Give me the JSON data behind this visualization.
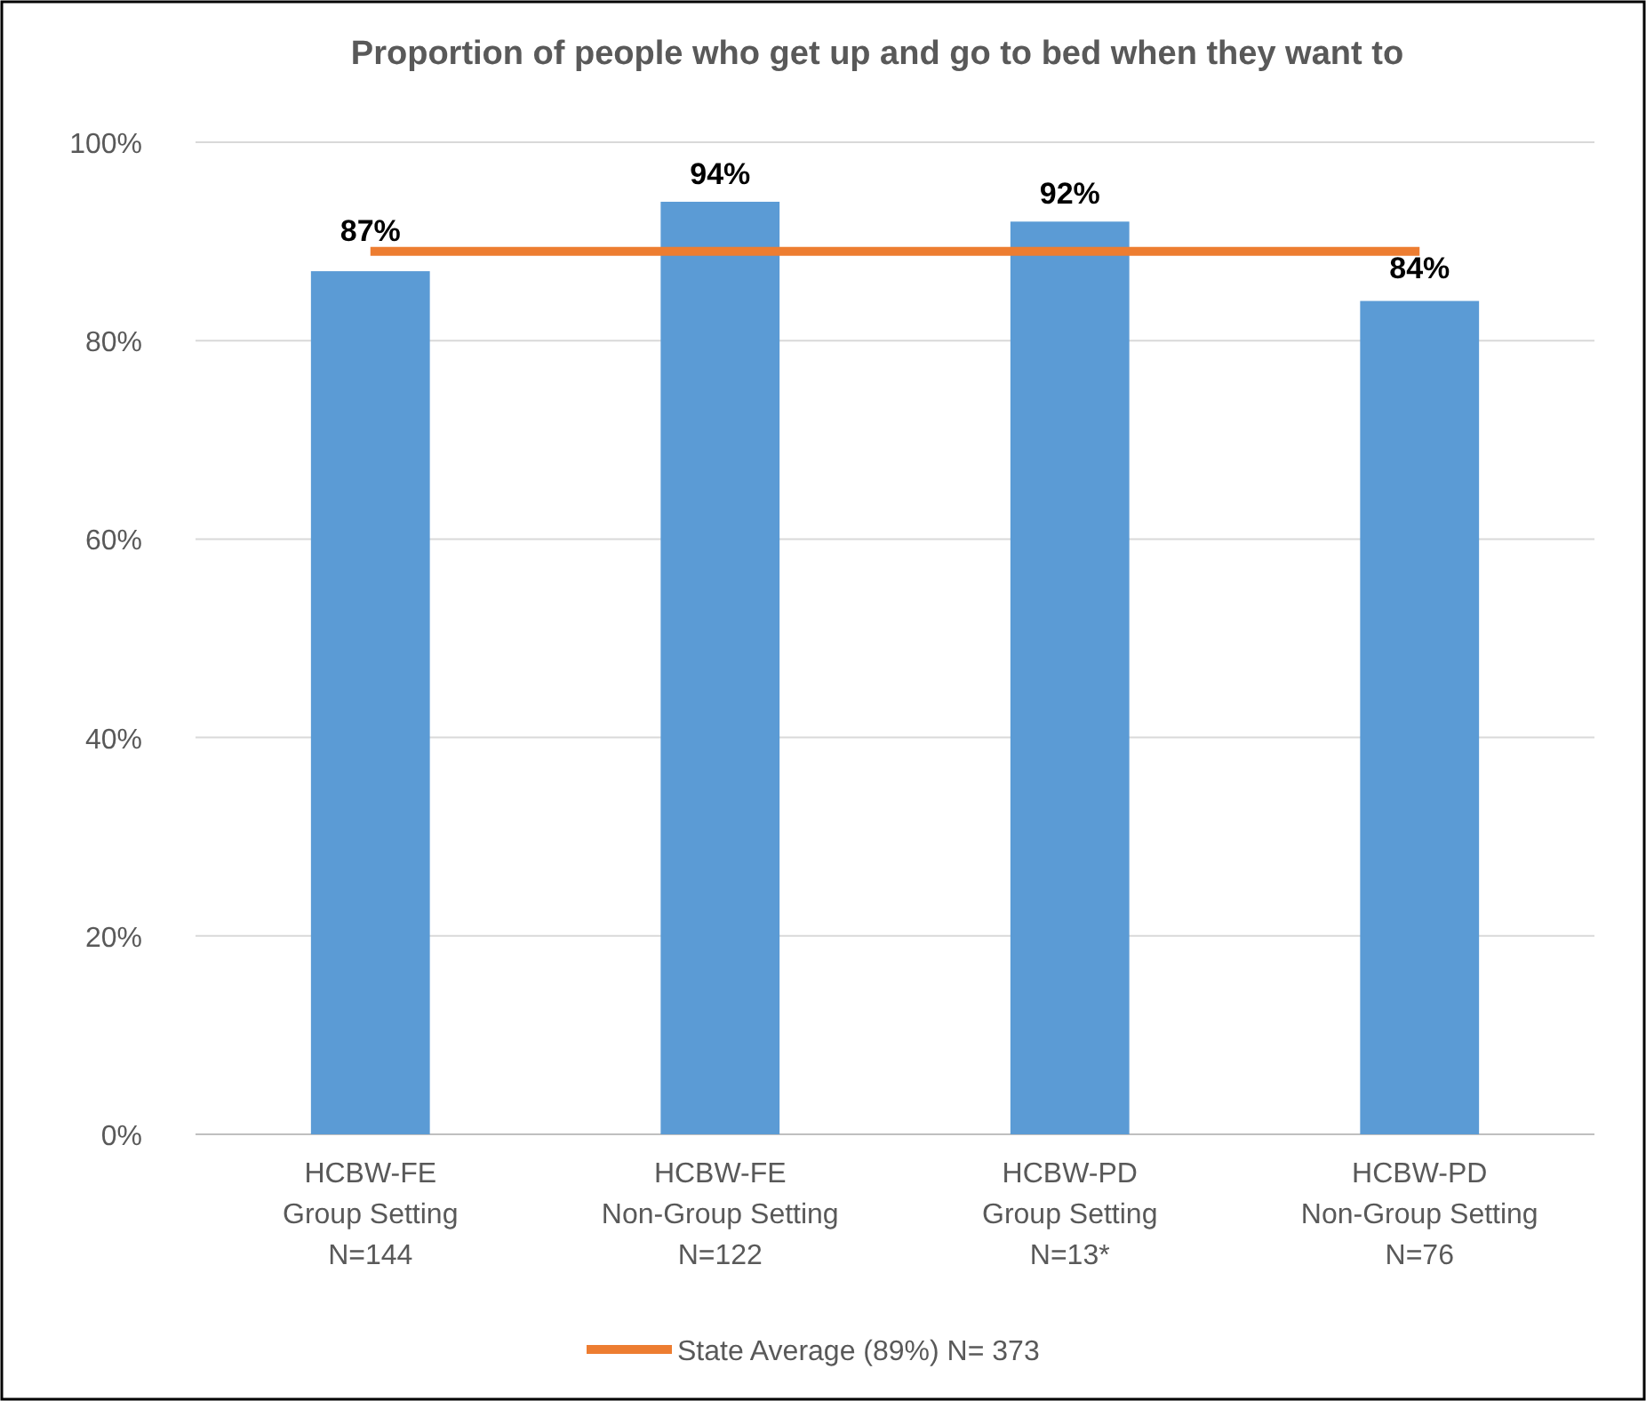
{
  "chart_data": {
    "type": "bar",
    "title": "Proportion of people who get up and go to bed when they want to",
    "categories": [
      "HCBW-FE\nGroup Setting\nN=144",
      "HCBW-FE\nNon-Group Setting\nN=122",
      "HCBW-PD\nGroup Setting\nN=13*",
      "HCBW-PD\nNon-Group Setting\nN=76"
    ],
    "series": [
      {
        "color": "#5b9bd5",
        "values": [
          87,
          94,
          92,
          84
        ],
        "value_labels": [
          "87%",
          "94%",
          "92%",
          "84%"
        ]
      },
      {
        "type": "line",
        "name": "State Average (89%) N= 373",
        "color": "#ed7d31",
        "values": [
          89,
          89,
          89,
          89
        ]
      }
    ],
    "ylim": [
      0,
      100
    ],
    "yticks": [
      {
        "value": 0,
        "label": "0%"
      },
      {
        "value": 20,
        "label": "20%"
      },
      {
        "value": 40,
        "label": "40%"
      },
      {
        "value": 60,
        "label": "60%"
      },
      {
        "value": 80,
        "label": "80%"
      },
      {
        "value": 100,
        "label": "100%"
      }
    ],
    "grid": "y",
    "legend": "bottom",
    "marker": "none"
  }
}
